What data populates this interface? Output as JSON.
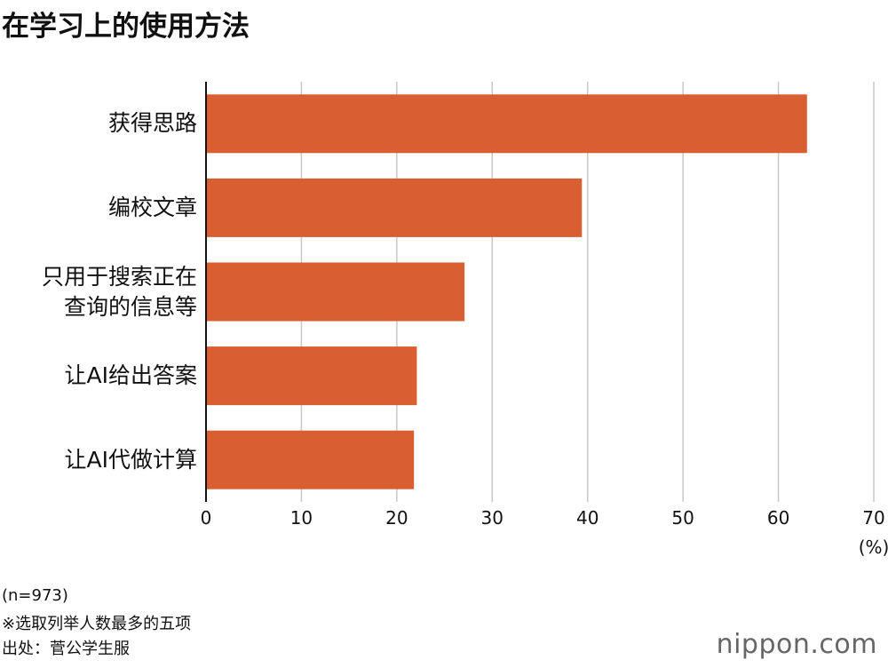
{
  "chart_data": {
    "type": "bar",
    "orientation": "horizontal",
    "title": "在学习上的使用方法",
    "categories": [
      "获得思路",
      "编校文章",
      "只用于搜索正在\n查询的信息等",
      "让AI给出答案",
      "让AI代做计算"
    ],
    "values": [
      63.0,
      39.4,
      27.1,
      22.1,
      21.8
    ],
    "color": "#d95f33",
    "xlim": [
      0,
      70
    ],
    "xticks": [
      0,
      10,
      20,
      30,
      40,
      50,
      60,
      70
    ],
    "x_unit": "(%)",
    "grid": true,
    "notes": [
      "(n=973)",
      "※选取列举人数最多的五项",
      "出处：菅公学生服"
    ],
    "logo": "nippon.com"
  }
}
